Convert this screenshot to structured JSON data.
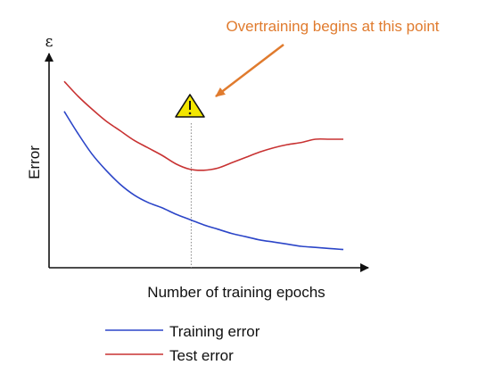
{
  "chart_data": {
    "type": "line",
    "title": "",
    "xlabel": "Number of training epochs",
    "ylabel": "Error",
    "y_axis_symbol": "ε",
    "x_ticks": [],
    "y_ticks": [],
    "grid": false,
    "legend_placement": "bottom",
    "annotation": {
      "text": "Overtraining begins at this point",
      "color": "#E07B2E",
      "marker": "warning-triangle-icon"
    },
    "xlim": [
      0,
      1
    ],
    "ylim": [
      0,
      1
    ],
    "series": [
      {
        "name": "Training error",
        "color": "#2B45C8",
        "x": [
          0.0,
          0.05,
          0.1,
          0.15,
          0.2,
          0.25,
          0.3,
          0.35,
          0.4,
          0.45,
          0.5,
          0.55,
          0.6,
          0.65,
          0.7,
          0.75,
          0.8,
          0.85,
          0.9,
          0.95,
          1.0
        ],
        "y": [
          0.73,
          0.625,
          0.53,
          0.455,
          0.39,
          0.34,
          0.305,
          0.28,
          0.25,
          0.225,
          0.2,
          0.18,
          0.16,
          0.145,
          0.13,
          0.12,
          0.11,
          0.1,
          0.095,
          0.09,
          0.085
        ]
      },
      {
        "name": "Test error",
        "color": "#C83232",
        "x": [
          0.0,
          0.05,
          0.1,
          0.15,
          0.2,
          0.25,
          0.3,
          0.35,
          0.4,
          0.45,
          0.5,
          0.55,
          0.6,
          0.65,
          0.7,
          0.75,
          0.8,
          0.85,
          0.9,
          0.95,
          1.0
        ],
        "y": [
          0.87,
          0.8,
          0.74,
          0.685,
          0.64,
          0.595,
          0.56,
          0.525,
          0.485,
          0.46,
          0.455,
          0.465,
          0.49,
          0.515,
          0.54,
          0.56,
          0.575,
          0.585,
          0.6,
          0.6,
          0.6
        ]
      }
    ],
    "marker_x": 0.455
  }
}
